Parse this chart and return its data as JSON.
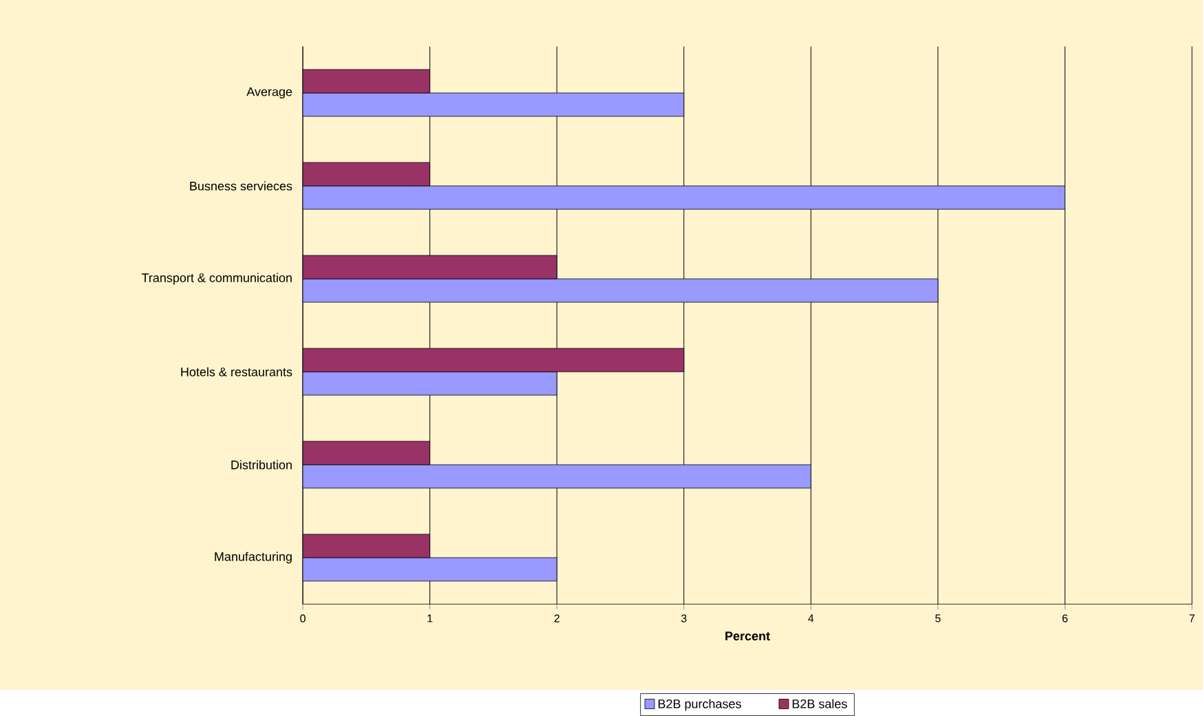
{
  "chart_data": {
    "type": "bar",
    "orientation": "horizontal",
    "xlabel": "Percent",
    "categories": [
      "Average",
      "Busness servieces",
      "Transport & communication",
      "Hotels & restaurants",
      "Distribution",
      "Manufacturing"
    ],
    "series": [
      {
        "name": "B2B purchases",
        "color": "#9999ff",
        "values": [
          3,
          6,
          5,
          2,
          4,
          2
        ]
      },
      {
        "name": "B2B sales",
        "color": "#993366",
        "values": [
          1,
          1,
          2,
          3,
          1,
          1
        ]
      }
    ],
    "xlim": [
      0,
      7
    ],
    "xticks": [
      0,
      1,
      2,
      3,
      4,
      5,
      6,
      7
    ],
    "grid": "x",
    "legend": "bottom"
  }
}
